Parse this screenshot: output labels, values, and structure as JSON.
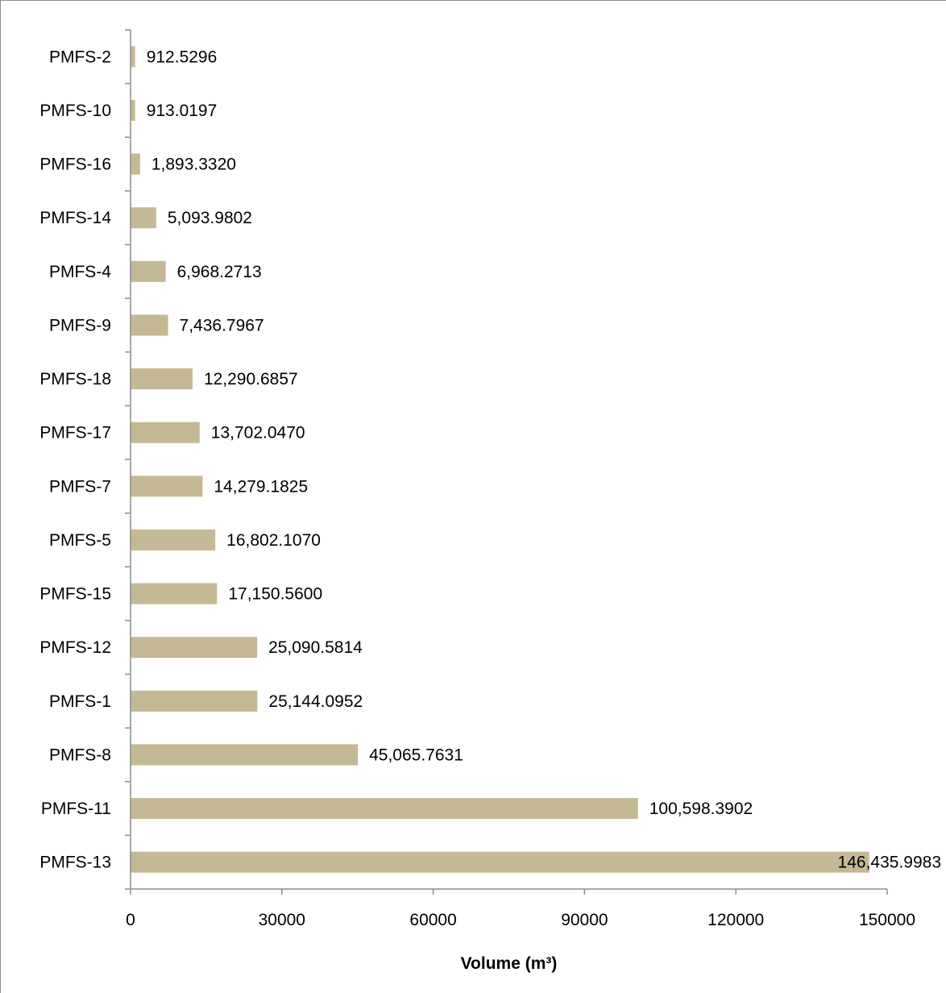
{
  "chart_data": {
    "type": "bar",
    "orientation": "horizontal",
    "categories": [
      "PMFS-2",
      "PMFS-10",
      "PMFS-16",
      "PMFS-14",
      "PMFS-4",
      "PMFS-9",
      "PMFS-18",
      "PMFS-17",
      "PMFS-7",
      "PMFS-5",
      "PMFS-15",
      "PMFS-12",
      "PMFS-1",
      "PMFS-8",
      "PMFS-11",
      "PMFS-13"
    ],
    "values": [
      912.5296,
      913.0197,
      1893.332,
      5093.9802,
      6968.2713,
      7436.7967,
      12290.6857,
      13702.047,
      14279.1825,
      16802.107,
      17150.56,
      25090.5814,
      25144.0952,
      45065.7631,
      100598.3902,
      146435.9983
    ],
    "data_labels": [
      "912.5296",
      "913.0197",
      "1,893.3320",
      "5,093.9802",
      "6,968.2713",
      "7,436.7967",
      "12,290.6857",
      "13,702.0470",
      "14,279.1825",
      "16,802.1070",
      "17,150.5600",
      "25,090.5814",
      "25,144.0952",
      "45,065.7631",
      "100,598.3902",
      "146,435.9983"
    ],
    "xlabel": "Volume (m³)",
    "ylabel": "",
    "xlim": [
      0,
      150000
    ],
    "xticks": [
      "0",
      "30000",
      "60000",
      "90000",
      "120000",
      "150000"
    ],
    "grid": false,
    "bar_color": "#c4b994"
  }
}
